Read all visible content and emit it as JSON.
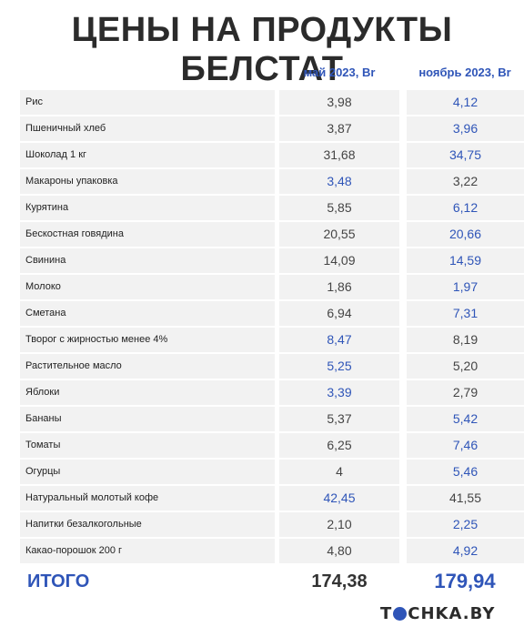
{
  "title": "ЦЕНЫ НА ПРОДУКТЫ БЕЛСТАТ",
  "columns": {
    "may": "май 2023, Br",
    "nov": "ноябрь 2023, Br"
  },
  "rows": [
    {
      "name": "Рис",
      "may": "3,98",
      "nov": "4,12",
      "higher": "nov"
    },
    {
      "name": "Пшеничный хлеб",
      "may": "3,87",
      "nov": "3,96",
      "higher": "nov"
    },
    {
      "name": "Шоколад 1 кг",
      "may": "31,68",
      "nov": "34,75",
      "higher": "nov"
    },
    {
      "name": "Макароны упаковка",
      "may": "3,48",
      "nov": "3,22",
      "higher": "may"
    },
    {
      "name": "Курятина",
      "may": "5,85",
      "nov": "6,12",
      "higher": "nov"
    },
    {
      "name": "Бескостная говядина",
      "may": "20,55",
      "nov": "20,66",
      "higher": "nov"
    },
    {
      "name": "Свинина",
      "may": "14,09",
      "nov": "14,59",
      "higher": "nov"
    },
    {
      "name": "Молоко",
      "may": "1,86",
      "nov": "1,97",
      "higher": "nov"
    },
    {
      "name": "Сметана",
      "may": "6,94",
      "nov": "7,31",
      "higher": "nov"
    },
    {
      "name": "Творог с жирностью менее 4%",
      "may": "8,47",
      "nov": "8,19",
      "higher": "may"
    },
    {
      "name": "Растительное масло",
      "may": "5,25",
      "nov": "5,20",
      "higher": "may"
    },
    {
      "name": "Яблоки",
      "may": "3,39",
      "nov": "2,79",
      "higher": "may"
    },
    {
      "name": "Бананы",
      "may": "5,37",
      "nov": "5,42",
      "higher": "nov"
    },
    {
      "name": "Томаты",
      "may": "6,25",
      "nov": "7,46",
      "higher": "nov"
    },
    {
      "name": "Огурцы",
      "may": "4",
      "nov": "5,46",
      "higher": "nov"
    },
    {
      "name": "Натуральный молотый кофе",
      "may": "42,45",
      "nov": "41,55",
      "higher": "may"
    },
    {
      "name": "Напитки безалкогольные",
      "may": "2,10",
      "nov": "2,25",
      "higher": "nov"
    },
    {
      "name": "Какао-порошок 200 г",
      "may": "4,80",
      "nov": "4,92",
      "higher": "nov"
    }
  ],
  "total": {
    "label": "ИТОГО",
    "may": "174,38",
    "nov": "179,94"
  },
  "logo": {
    "text_before": "T",
    "text_after": "CHKA.BY"
  },
  "colors": {
    "accent": "#2f55b8",
    "row_bg": "#f2f2f2",
    "title": "#2b2b2b"
  }
}
